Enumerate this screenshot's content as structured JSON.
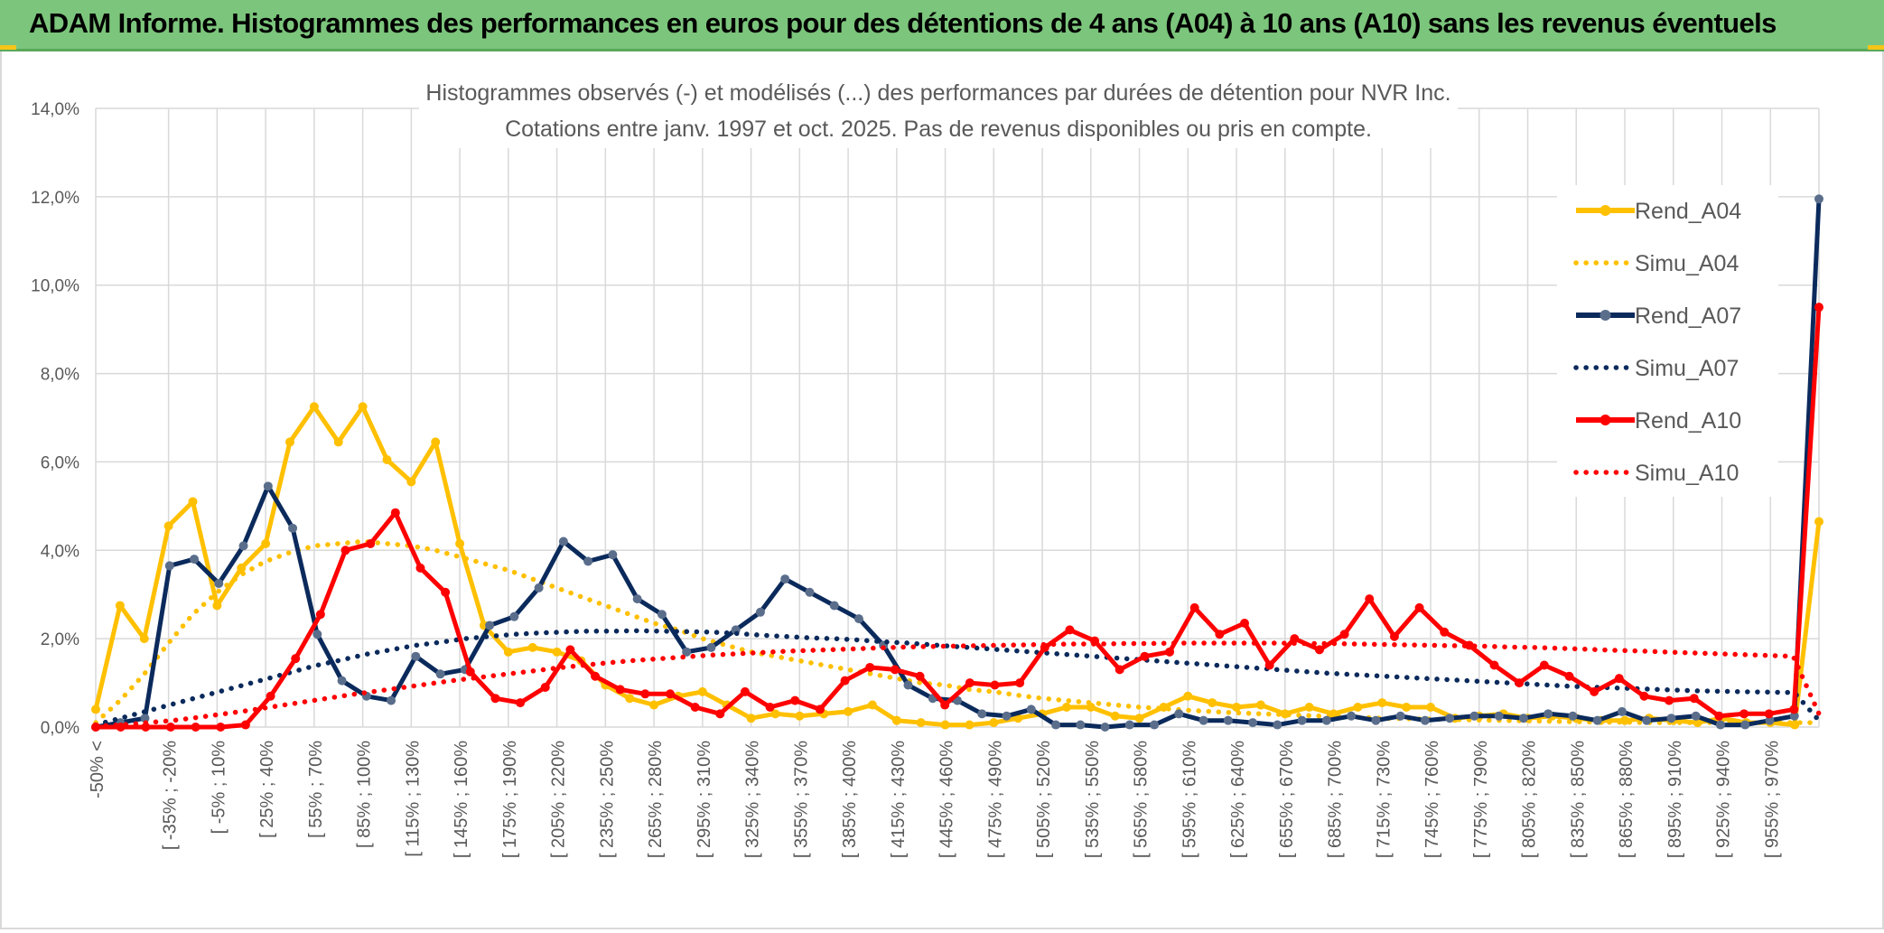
{
  "banner": {
    "title": "ADAM Informe. Histogrammes des performances en euros pour des détentions de 4 ans (A04) à 10 ans (A10) sans les revenus éventuels"
  },
  "colors": {
    "banner_bg": "#7cc57c",
    "A04": "#ffc000",
    "A07": "#0b2a5c",
    "A10": "#ff0000",
    "marker_A07": "#5a6e8c",
    "grid": "#d9d9d9",
    "axis_text": "#595959"
  },
  "chart_data": {
    "type": "line",
    "title": "Histogrammes observés (-) et modélisés (...) des performances par durées de détention pour NVR Inc.",
    "subtitle": "Cotations entre janv. 1997 et oct. 2025. Pas de revenus disponibles ou pris en compte.",
    "xlabel": "",
    "ylabel": "",
    "ylim": [
      0,
      14
    ],
    "y_ticks": [
      "0,0%",
      "2,0%",
      "4,0%",
      "6,0%",
      "8,0%",
      "10,0%",
      "12,0%",
      "14,0%"
    ],
    "grid": true,
    "legend_position": "right",
    "x_tick_labels": [
      "-50% <",
      "[ -35% ; -20%",
      "[ -5% ; 10%",
      "[ 25% ; 40%",
      "[ 55% ; 70%",
      "[ 85% ; 100%",
      "[ 115% ; 130%",
      "[ 145% ; 160%",
      "[ 175% ; 190%",
      "[ 205% ; 220%",
      "[ 235% ; 250%",
      "[ 265% ; 280%",
      "[ 295% ; 310%",
      "[ 325% ; 340%",
      "[ 355% ; 370%",
      "[ 385% ; 400%",
      "[ 415% ; 430%",
      "[ 445% ; 460%",
      "[ 475% ; 490%",
      "[ 505% ; 520%",
      "[ 535% ; 550%",
      "[ 565% ; 580%",
      "[ 595% ; 610%",
      "[ 625% ; 640%",
      "[ 655% ; 670%",
      "[ 685% ; 700%",
      "[ 715% ; 730%",
      "[ 745% ; 760%",
      "[ 775% ; 790%",
      "[ 805% ; 820%",
      "[ 835% ; 850%",
      "[ 865% ; 880%",
      "[ 895% ; 910%",
      "[ 925% ; 940%",
      "[ 955% ; 970%"
    ],
    "series": [
      {
        "name": "Rend_A04",
        "style": "solid",
        "values": [
          0.4,
          2.75,
          2.0,
          4.55,
          5.1,
          2.75,
          3.6,
          4.15,
          6.45,
          7.25,
          6.45,
          7.25,
          6.05,
          5.55,
          6.45,
          4.15,
          2.3,
          1.7,
          1.8,
          1.7,
          1.5,
          0.95,
          0.65,
          0.5,
          0.7,
          0.8,
          0.5,
          0.2,
          0.3,
          0.25,
          0.3,
          0.35,
          0.5,
          0.15,
          0.1,
          0.05,
          0.05,
          0.1,
          0.2,
          0.3,
          0.45,
          0.45,
          0.25,
          0.2,
          0.45,
          0.7,
          0.55,
          0.45,
          0.5,
          0.3,
          0.45,
          0.3,
          0.45,
          0.55,
          0.45,
          0.45,
          0.2,
          0.25,
          0.3,
          0.2,
          0.25,
          0.2,
          0.15,
          0.15,
          0.2,
          0.15,
          0.1,
          0.2,
          0.1,
          0.1,
          0.05,
          4.65
        ]
      },
      {
        "name": "Simu_A04",
        "style": "dotted",
        "values": [
          0.1,
          0.6,
          1.2,
          1.9,
          2.55,
          3.05,
          3.45,
          3.75,
          3.95,
          4.1,
          4.15,
          4.2,
          4.15,
          4.1,
          4.0,
          3.85,
          3.7,
          3.55,
          3.35,
          3.15,
          2.95,
          2.75,
          2.55,
          2.35,
          2.2,
          2.0,
          1.85,
          1.7,
          1.6,
          1.5,
          1.4,
          1.3,
          1.2,
          1.1,
          1.0,
          0.95,
          0.85,
          0.8,
          0.72,
          0.65,
          0.6,
          0.55,
          0.5,
          0.45,
          0.42,
          0.38,
          0.35,
          0.32,
          0.3,
          0.28,
          0.26,
          0.24,
          0.22,
          0.2,
          0.19,
          0.18,
          0.17,
          0.16,
          0.15,
          0.14,
          0.13,
          0.12,
          0.11,
          0.11,
          0.1,
          0.1,
          0.1,
          0.1,
          0.1,
          0.1,
          0.1,
          0.1
        ]
      },
      {
        "name": "Rend_A07",
        "style": "solid",
        "values": [
          0.0,
          0.1,
          0.2,
          3.65,
          3.8,
          3.25,
          4.1,
          5.45,
          4.5,
          2.1,
          1.05,
          0.7,
          0.6,
          1.6,
          1.2,
          1.3,
          2.3,
          2.5,
          3.15,
          4.2,
          3.75,
          3.9,
          2.9,
          2.55,
          1.7,
          1.8,
          2.2,
          2.6,
          3.35,
          3.05,
          2.75,
          2.45,
          1.85,
          0.95,
          0.65,
          0.6,
          0.3,
          0.25,
          0.4,
          0.05,
          0.05,
          0.0,
          0.05,
          0.05,
          0.3,
          0.15,
          0.15,
          0.1,
          0.05,
          0.15,
          0.15,
          0.25,
          0.15,
          0.25,
          0.15,
          0.2,
          0.25,
          0.25,
          0.2,
          0.3,
          0.25,
          0.15,
          0.35,
          0.15,
          0.2,
          0.25,
          0.05,
          0.05,
          0.15,
          0.25,
          11.95
        ]
      },
      {
        "name": "Simu_A07",
        "style": "dotted",
        "values": [
          0.05,
          0.2,
          0.35,
          0.5,
          0.65,
          0.8,
          0.95,
          1.1,
          1.25,
          1.4,
          1.52,
          1.65,
          1.75,
          1.85,
          1.92,
          2.0,
          2.05,
          2.1,
          2.13,
          2.15,
          2.17,
          2.17,
          2.18,
          2.17,
          2.16,
          2.15,
          2.12,
          2.08,
          2.05,
          2.02,
          2.0,
          1.97,
          1.93,
          1.9,
          1.86,
          1.82,
          1.78,
          1.74,
          1.7,
          1.66,
          1.62,
          1.58,
          1.54,
          1.5,
          1.46,
          1.42,
          1.38,
          1.34,
          1.3,
          1.26,
          1.22,
          1.19,
          1.16,
          1.13,
          1.1,
          1.07,
          1.04,
          1.01,
          0.98,
          0.95,
          0.92,
          0.9,
          0.88,
          0.86,
          0.84,
          0.82,
          0.81,
          0.8,
          0.79,
          0.78,
          0.15
        ]
      },
      {
        "name": "Rend_A10",
        "style": "solid",
        "values": [
          0.0,
          0.0,
          0.0,
          0.0,
          0.0,
          0.0,
          0.05,
          0.7,
          1.55,
          2.55,
          4.0,
          4.15,
          4.85,
          3.6,
          3.05,
          1.25,
          0.65,
          0.55,
          0.9,
          1.75,
          1.15,
          0.85,
          0.75,
          0.75,
          0.45,
          0.3,
          0.8,
          0.45,
          0.6,
          0.4,
          1.05,
          1.35,
          1.3,
          1.15,
          0.5,
          1.0,
          0.95,
          1.0,
          1.8,
          2.2,
          1.95,
          1.3,
          1.6,
          1.7,
          2.7,
          2.1,
          2.35,
          1.4,
          2.0,
          1.75,
          2.1,
          2.9,
          2.05,
          2.7,
          2.15,
          1.85,
          1.4,
          1.0,
          1.4,
          1.15,
          0.8,
          1.1,
          0.7,
          0.6,
          0.65,
          0.25,
          0.3,
          0.3,
          0.4,
          9.5
        ]
      },
      {
        "name": "Simu_A10",
        "style": "dotted",
        "values": [
          0.02,
          0.05,
          0.1,
          0.15,
          0.22,
          0.3,
          0.38,
          0.47,
          0.56,
          0.65,
          0.74,
          0.82,
          0.9,
          0.98,
          1.06,
          1.13,
          1.2,
          1.27,
          1.34,
          1.4,
          1.46,
          1.51,
          1.55,
          1.59,
          1.63,
          1.66,
          1.69,
          1.72,
          1.74,
          1.76,
          1.78,
          1.8,
          1.82,
          1.83,
          1.84,
          1.85,
          1.86,
          1.87,
          1.88,
          1.88,
          1.89,
          1.89,
          1.9,
          1.9,
          1.9,
          1.9,
          1.9,
          1.89,
          1.89,
          1.88,
          1.87,
          1.86,
          1.85,
          1.84,
          1.83,
          1.81,
          1.8,
          1.78,
          1.76,
          1.74,
          1.72,
          1.7,
          1.68,
          1.66,
          1.64,
          1.62,
          1.6,
          0.3
        ]
      }
    ]
  }
}
